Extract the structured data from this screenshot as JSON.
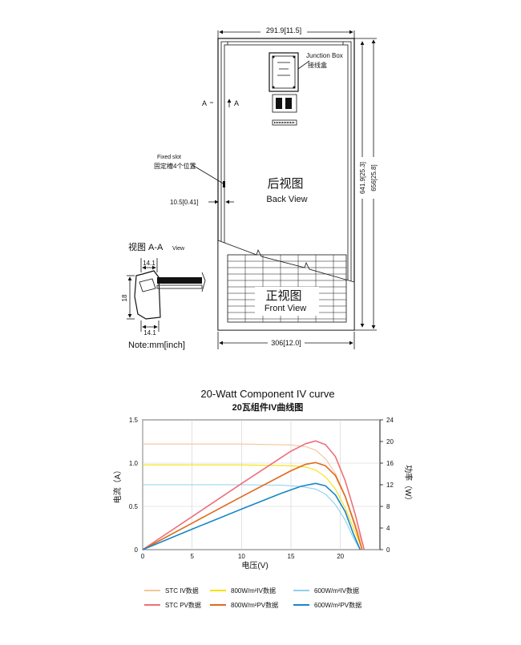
{
  "drawing": {
    "top_width_dim": "291.9[11.5]",
    "bottom_width_dim": "306[12.0]",
    "height_dim_inner": "641.9[25.3]",
    "height_dim_outer": "656[25.8]",
    "junction_box_en": "Junction Box",
    "junction_box_cn": "接线盒",
    "section_marker": "A",
    "fixed_slot_en": "Fixed slot",
    "fixed_slot_cn": "固定槽4个位置",
    "slot_offset_dim": "10.5[0.41]",
    "back_view_cn": "后视图",
    "back_view_en": "Back View",
    "front_view_cn": "正视图",
    "front_view_en": "Front View",
    "section_view_label_cn": "视图 A-A",
    "section_view_label_en": "View",
    "section_dim_top": "14.1",
    "section_dim_bottom": "14.1",
    "section_dim_side": "18",
    "note": "Note:mm[inch]"
  },
  "chart": {
    "title_en": "20-Watt Component IV curve",
    "title_cn": "20瓦组件IV曲线图",
    "xlabel": "电压(V)",
    "ylabel_left": "电流（A）",
    "ylabel_right": "功率（W）"
  },
  "chart_data": {
    "type": "line",
    "title": "20-Watt Component IV curve",
    "xlabel": "电压(V)",
    "ylabel": "电流（A）",
    "ylabel_right": "功率（W）",
    "xlim": [
      0,
      24
    ],
    "ylim": [
      0,
      1.5
    ],
    "ylim_right": [
      0,
      24
    ],
    "x_ticks": [
      "0",
      "5",
      "10",
      "15",
      "20"
    ],
    "y_ticks": [
      "0",
      "0.5",
      "1.0",
      "1.5"
    ],
    "y_right_ticks": [
      "0",
      "4",
      "8",
      "12",
      "16",
      "20",
      "24"
    ],
    "grid": true,
    "series": [
      {
        "name": "STC IV数据",
        "axis": "left",
        "color": "#f5c49a",
        "x": [
          0,
          5,
          10,
          15,
          16.5,
          17.5,
          18.5,
          19.5,
          20.5,
          21.5,
          22.4
        ],
        "y": [
          1.22,
          1.22,
          1.22,
          1.21,
          1.19,
          1.15,
          1.05,
          0.88,
          0.62,
          0.3,
          0
        ]
      },
      {
        "name": "800W/m²IV数据",
        "axis": "left",
        "color": "#f7e100",
        "x": [
          0,
          5,
          10,
          15,
          16.5,
          17.5,
          18.5,
          19.5,
          20.5,
          21.5,
          22.2
        ],
        "y": [
          0.98,
          0.98,
          0.98,
          0.97,
          0.955,
          0.92,
          0.84,
          0.7,
          0.48,
          0.2,
          0
        ]
      },
      {
        "name": "600W/m²IV数据",
        "axis": "left",
        "color": "#8fd0ee",
        "x": [
          0,
          5,
          10,
          14,
          16,
          17.5,
          18.5,
          19.5,
          20.5,
          21.3,
          22.0
        ],
        "y": [
          0.75,
          0.75,
          0.75,
          0.745,
          0.73,
          0.7,
          0.64,
          0.52,
          0.34,
          0.14,
          0
        ]
      },
      {
        "name": "STC PV数据",
        "axis": "right",
        "color": "#ee6f7b",
        "x": [
          0,
          5,
          10,
          15,
          16.5,
          17.5,
          18.5,
          19.5,
          20.5,
          21.5,
          22.4
        ],
        "y": [
          0,
          6.1,
          12.2,
          18.2,
          19.6,
          20.1,
          19.4,
          17.2,
          12.7,
          6.5,
          0
        ]
      },
      {
        "name": "800W/m²PV数据",
        "axis": "right",
        "color": "#e06a1b",
        "x": [
          0,
          5,
          10,
          15,
          16.5,
          17.5,
          18.5,
          19.5,
          20.5,
          21.5,
          22.2
        ],
        "y": [
          0,
          4.9,
          9.8,
          14.6,
          15.8,
          16.1,
          15.5,
          13.7,
          9.8,
          4.3,
          0
        ]
      },
      {
        "name": "600W/m²PV数据",
        "axis": "right",
        "color": "#1787c7",
        "x": [
          0,
          5,
          10,
          14,
          16,
          17.5,
          18.5,
          19.5,
          20.5,
          21.3,
          22.0
        ],
        "y": [
          0,
          3.8,
          7.5,
          10.4,
          11.7,
          12.25,
          11.8,
          10.1,
          7.0,
          3.0,
          0
        ]
      }
    ]
  }
}
